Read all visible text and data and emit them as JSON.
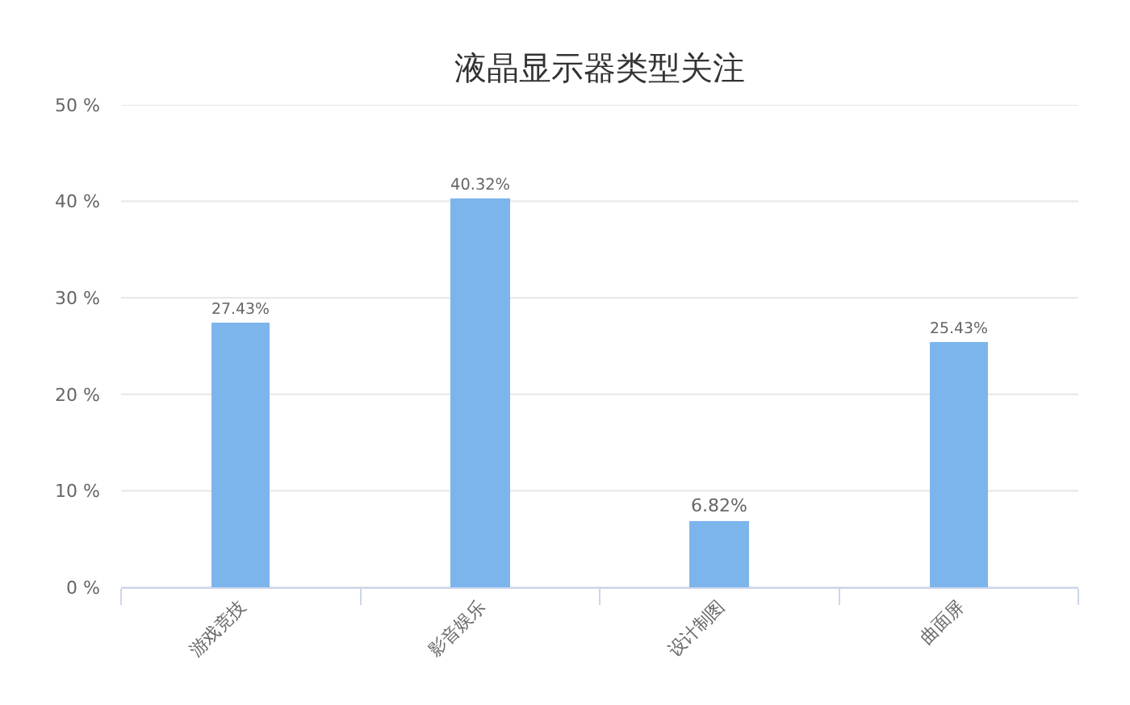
{
  "chart_data": {
    "type": "bar",
    "title": "液晶显示器类型关注",
    "categories": [
      "游戏竞技",
      "影音娱乐",
      "设计制图",
      "曲面屏"
    ],
    "values": [
      27.43,
      40.32,
      6.82,
      25.43
    ],
    "value_labels": [
      "27.43%",
      "40.32%",
      "6.82%",
      "25.43%"
    ],
    "color": "#7cb5ec",
    "ylim": [
      0,
      50
    ],
    "yticks": [
      {
        "value": 0,
        "label": "0 %"
      },
      {
        "value": 10,
        "label": "10 %"
      },
      {
        "value": 20,
        "label": "20 %"
      },
      {
        "value": 30,
        "label": "30 %"
      },
      {
        "value": 40,
        "label": "40 %"
      },
      {
        "value": 50,
        "label": "50 %"
      }
    ],
    "grid": "y"
  }
}
